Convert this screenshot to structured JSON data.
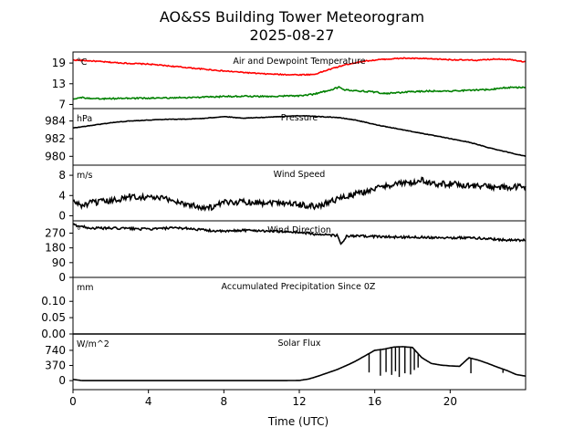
{
  "title_line1": "AO&SS Building Tower Meteorogram",
  "title_line2": "2025-08-27",
  "xlabel": "Time (UTC)",
  "chart_data": {
    "type": "line",
    "x_ticks": [
      0,
      4,
      8,
      12,
      16,
      20
    ],
    "x_tick_labels": [
      "0",
      "4",
      "8",
      "12",
      "16",
      "20"
    ],
    "xlim": [
      0,
      24
    ],
    "panels": [
      {
        "key": "temp",
        "title": "Air and Dewpoint Temperature",
        "unit": "°C",
        "ylim": [
          5.8,
          22.2
        ],
        "yticks": [
          7,
          13,
          19
        ],
        "ytick_labels": [
          "7",
          "13",
          "19"
        ],
        "series": [
          {
            "name": "Air Temperature",
            "color": "#ff0000",
            "noise": 0.15,
            "points": [
              [
                0,
                19.9
              ],
              [
                1,
                19.6
              ],
              [
                2,
                19.2
              ],
              [
                3,
                18.9
              ],
              [
                4,
                18.7
              ],
              [
                5,
                18.2
              ],
              [
                6,
                17.7
              ],
              [
                7,
                17.2
              ],
              [
                8,
                16.7
              ],
              [
                9,
                16.3
              ],
              [
                10,
                15.9
              ],
              [
                11,
                15.7
              ],
              [
                12,
                15.6
              ],
              [
                12.8,
                15.7
              ],
              [
                13.5,
                17.0
              ],
              [
                14.5,
                18.6
              ],
              [
                15.5,
                19.6
              ],
              [
                16.5,
                20.1
              ],
              [
                17.5,
                20.4
              ],
              [
                18.5,
                20.3
              ],
              [
                19.5,
                20.1
              ],
              [
                20.5,
                19.9
              ],
              [
                21.5,
                19.8
              ],
              [
                22.5,
                20.2
              ],
              [
                23.3,
                20.0
              ],
              [
                24,
                19.3
              ]
            ]
          },
          {
            "name": "Dewpoint Temperature",
            "color": "#008000",
            "noise": 0.2,
            "points": [
              [
                0,
                8.7
              ],
              [
                0.5,
                9.0
              ],
              [
                1,
                8.6
              ],
              [
                2,
                8.7
              ],
              [
                3,
                8.8
              ],
              [
                4,
                8.8
              ],
              [
                5,
                8.9
              ],
              [
                6,
                9.0
              ],
              [
                7,
                9.1
              ],
              [
                8,
                9.3
              ],
              [
                9,
                9.4
              ],
              [
                10,
                9.3
              ],
              [
                11,
                9.4
              ],
              [
                12,
                9.5
              ],
              [
                12.8,
                10.0
              ],
              [
                13.5,
                11.0
              ],
              [
                14.1,
                12.0
              ],
              [
                14.3,
                11.3
              ],
              [
                15,
                11.0
              ],
              [
                16,
                10.6
              ],
              [
                16.5,
                10.2
              ],
              [
                17,
                10.3
              ],
              [
                18,
                10.7
              ],
              [
                19,
                10.9
              ],
              [
                20,
                10.9
              ],
              [
                21,
                11.1
              ],
              [
                22,
                11.3
              ],
              [
                23,
                11.9
              ],
              [
                24,
                12.0
              ]
            ]
          }
        ]
      },
      {
        "key": "pressure",
        "title": "Pressure",
        "unit": "hPa",
        "ylim": [
          979.0,
          985.4
        ],
        "yticks": [
          980,
          982,
          984
        ],
        "ytick_labels": [
          "980",
          "982",
          "984"
        ],
        "series": [
          {
            "name": "Pressure",
            "color": "#000000",
            "noise": 0.03,
            "points": [
              [
                0,
                983.2
              ],
              [
                1,
                983.5
              ],
              [
                2,
                983.8
              ],
              [
                3,
                984.0
              ],
              [
                4,
                984.1
              ],
              [
                5,
                984.2
              ],
              [
                6,
                984.2
              ],
              [
                7,
                984.3
              ],
              [
                8,
                984.5
              ],
              [
                9,
                984.3
              ],
              [
                10,
                984.4
              ],
              [
                11,
                984.5
              ],
              [
                12,
                984.6
              ],
              [
                13,
                984.5
              ],
              [
                14,
                984.4
              ],
              [
                15,
                984.1
              ],
              [
                16,
                983.6
              ],
              [
                17,
                983.2
              ],
              [
                18,
                982.8
              ],
              [
                19,
                982.4
              ],
              [
                20,
                982.0
              ],
              [
                21,
                981.6
              ],
              [
                22,
                981.0
              ],
              [
                23,
                980.5
              ],
              [
                24,
                980.0
              ]
            ]
          }
        ]
      },
      {
        "key": "wind_speed",
        "title": "Wind Speed",
        "unit": "m/s",
        "ylim": [
          -1.0,
          10.0
        ],
        "yticks": [
          0,
          4,
          8
        ],
        "ytick_labels": [
          "0",
          "4",
          "8"
        ],
        "series": [
          {
            "name": "Wind Speed",
            "color": "#000000",
            "noise": 0.6,
            "points": [
              [
                0,
                2.8
              ],
              [
                0.5,
                2.0
              ],
              [
                1,
                2.6
              ],
              [
                2,
                2.9
              ],
              [
                3,
                3.8
              ],
              [
                4,
                3.7
              ],
              [
                5,
                3.3
              ],
              [
                6,
                2.3
              ],
              [
                7,
                1.6
              ],
              [
                7.5,
                1.7
              ],
              [
                8,
                2.6
              ],
              [
                9,
                2.8
              ],
              [
                10,
                2.6
              ],
              [
                11,
                2.7
              ],
              [
                12,
                2.2
              ],
              [
                13,
                1.8
              ],
              [
                13.5,
                2.7
              ],
              [
                14,
                3.3
              ],
              [
                15,
                4.3
              ],
              [
                16,
                5.3
              ],
              [
                17,
                6.3
              ],
              [
                18,
                6.5
              ],
              [
                18.5,
                7.0
              ],
              [
                19,
                6.3
              ],
              [
                20,
                6.3
              ],
              [
                21,
                6.0
              ],
              [
                22,
                5.8
              ],
              [
                23,
                5.5
              ],
              [
                24,
                5.8
              ]
            ]
          }
        ]
      },
      {
        "key": "wind_dir",
        "title": "Wind Direction",
        "unit": "°",
        "ylim": [
          0,
          345
        ],
        "yticks": [
          0,
          90,
          180,
          270
        ],
        "ytick_labels": [
          "0",
          "90",
          "180",
          "270"
        ],
        "series": [
          {
            "name": "Wind Direction",
            "color": "#000000",
            "noise": 7,
            "points": [
              [
                0,
                322
              ],
              [
                0.5,
                310
              ],
              [
                1,
                300
              ],
              [
                2,
                300
              ],
              [
                3,
                298
              ],
              [
                4,
                294
              ],
              [
                5,
                300
              ],
              [
                6,
                300
              ],
              [
                7,
                288
              ],
              [
                8,
                280
              ],
              [
                9,
                288
              ],
              [
                10,
                285
              ],
              [
                11,
                280
              ],
              [
                12,
                275
              ],
              [
                13,
                262
              ],
              [
                14,
                255
              ],
              [
                14.2,
                205
              ],
              [
                14.5,
                250
              ],
              [
                15,
                252
              ],
              [
                16,
                250
              ],
              [
                17,
                246
              ],
              [
                18,
                246
              ],
              [
                19,
                244
              ],
              [
                20,
                242
              ],
              [
                21,
                242
              ],
              [
                22,
                236
              ],
              [
                23,
                228
              ],
              [
                24,
                226
              ]
            ]
          }
        ]
      },
      {
        "key": "precip",
        "title": "Accumulated Precipitation Since 0Z",
        "unit": "mm",
        "ylim": [
          0.0,
          0.1733
        ],
        "yticks": [
          0.0,
          0.05,
          0.1
        ],
        "ytick_labels": [
          "0.00",
          "0.05",
          "0.10"
        ],
        "series": [
          {
            "name": "Accumulated Precipitation",
            "color": "#000000",
            "noise": 0,
            "points": [
              [
                0,
                0.0
              ],
              [
                24,
                0.0
              ]
            ]
          }
        ]
      },
      {
        "key": "solar",
        "title": "Solar Flux",
        "unit": "W/m^2",
        "ylim": [
          -220,
          1140
        ],
        "yticks": [
          0,
          370,
          740
        ],
        "ytick_labels": [
          "0",
          "370",
          "740"
        ],
        "series": [
          {
            "name": "Solar Flux",
            "color": "#000000",
            "noise": 0,
            "points": [
              [
                0,
                30
              ],
              [
                0.5,
                0
              ],
              [
                3,
                0
              ],
              [
                6,
                0
              ],
              [
                9,
                0
              ],
              [
                11,
                0
              ],
              [
                12,
                5
              ],
              [
                12.5,
                40
              ],
              [
                13,
                110
              ],
              [
                13.5,
                190
              ],
              [
                14,
                270
              ],
              [
                14.5,
                370
              ],
              [
                15,
                480
              ],
              [
                15.5,
                610
              ],
              [
                16,
                740
              ],
              [
                16.5,
                770
              ],
              [
                17,
                820
              ],
              [
                17.5,
                830
              ],
              [
                18,
                810
              ],
              [
                18.5,
                560
              ],
              [
                19,
                420
              ],
              [
                19.5,
                380
              ],
              [
                20,
                360
              ],
              [
                20.5,
                350
              ],
              [
                21,
                560
              ],
              [
                21.5,
                500
              ],
              [
                22,
                420
              ],
              [
                22.5,
                330
              ],
              [
                23,
                250
              ],
              [
                23.5,
                150
              ],
              [
                24,
                110
              ]
            ]
          }
        ],
        "dips": [
          [
            15.7,
            200
          ],
          [
            16.3,
            120
          ],
          [
            16.6,
            210
          ],
          [
            16.9,
            140
          ],
          [
            17.1,
            230
          ],
          [
            17.3,
            90
          ],
          [
            17.6,
            180
          ],
          [
            17.9,
            150
          ],
          [
            18.1,
            260
          ],
          [
            18.3,
            320
          ],
          [
            21.1,
            180
          ],
          [
            22.8,
            190
          ]
        ]
      }
    ]
  }
}
